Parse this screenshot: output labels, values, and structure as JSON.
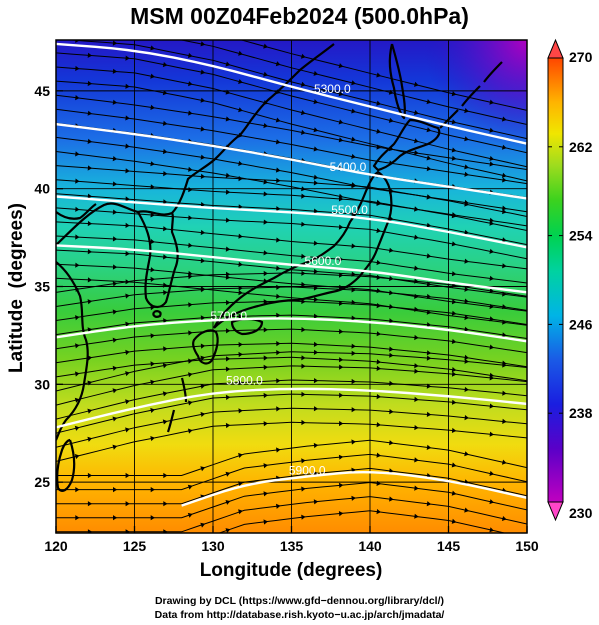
{
  "title": "MSM 00Z04Feb2024 (500.0hPa)",
  "credits": {
    "line1": "Drawing by DCL (https://www.gfd−dennou.org/library/dcl/)",
    "line2": "Data from http://database.rish.kyoto−u.ac.jp/arch/jmadata/"
  },
  "map": {
    "x_axis": {
      "label": "Longitude (degrees)",
      "range": [
        120,
        150
      ],
      "ticks": [
        120,
        125,
        130,
        135,
        140,
        145,
        150
      ]
    },
    "y_axis": {
      "label": "Latitude  (degrees)",
      "range": [
        22.4,
        47.6
      ],
      "ticks": [
        25,
        30,
        35,
        40,
        45
      ]
    },
    "gridlines": true,
    "colorbar": {
      "min": 230,
      "max": 270,
      "tick_labels": [
        230,
        238,
        246,
        254,
        262,
        270
      ],
      "colors": [
        "#c000c0",
        "#2a00c8",
        "#1d4fe6",
        "#00c8e6",
        "#00d278",
        "#46d21e",
        "#c8e61e",
        "#ffd200",
        "#ff9600",
        "#ff4600"
      ]
    },
    "contours": [
      {
        "label": "5300.0",
        "label_pos": [
          137.6,
          44.9
        ],
        "points": [
          [
            120,
            47.4
          ],
          [
            125,
            47.1
          ],
          [
            130,
            46.3
          ],
          [
            135,
            45.2
          ],
          [
            140,
            44.2
          ],
          [
            145,
            43.2
          ],
          [
            150,
            42.3
          ]
        ]
      },
      {
        "label": "5400.0",
        "label_pos": [
          138.6,
          40.9
        ],
        "points": [
          [
            120,
            43.3
          ],
          [
            125,
            42.8
          ],
          [
            130,
            42.2
          ],
          [
            135,
            41.5
          ],
          [
            140,
            40.7
          ],
          [
            145,
            40.1
          ],
          [
            150,
            39.5
          ]
        ]
      },
      {
        "label": "5500.0",
        "label_pos": [
          138.7,
          38.7
        ],
        "points": [
          [
            120,
            39.6
          ],
          [
            125,
            39.3
          ],
          [
            130,
            39.0
          ],
          [
            135,
            38.8
          ],
          [
            140,
            38.5
          ],
          [
            145,
            37.8
          ],
          [
            150,
            37.0
          ]
        ]
      },
      {
        "label": "5600.0",
        "label_pos": [
          137.0,
          36.1
        ],
        "points": [
          [
            120,
            37.1
          ],
          [
            125,
            36.9
          ],
          [
            130,
            36.5
          ],
          [
            135,
            36.1
          ],
          [
            140,
            35.8
          ],
          [
            145,
            35.2
          ],
          [
            150,
            34.7
          ]
        ]
      },
      {
        "label": "5700.0",
        "label_pos": [
          131.0,
          33.3
        ],
        "points": [
          [
            120,
            32.4
          ],
          [
            125,
            33.0
          ],
          [
            130,
            33.3
          ],
          [
            135,
            33.4
          ],
          [
            140,
            33.2
          ],
          [
            145,
            32.8
          ],
          [
            150,
            32.2
          ]
        ]
      },
      {
        "label": "5800.0",
        "label_pos": [
          132.0,
          30.0
        ],
        "points": [
          [
            120,
            27.8
          ],
          [
            125,
            28.8
          ],
          [
            130,
            29.6
          ],
          [
            135,
            29.8
          ],
          [
            140,
            29.7
          ],
          [
            145,
            29.4
          ],
          [
            150,
            29.0
          ]
        ]
      },
      {
        "label": "5900.0",
        "label_pos": [
          136.0,
          25.4
        ],
        "points": [
          [
            128,
            23.8
          ],
          [
            132,
            24.9
          ],
          [
            136,
            25.3
          ],
          [
            140,
            25.6
          ],
          [
            145,
            25.1
          ],
          [
            150,
            24.2
          ]
        ]
      }
    ]
  }
}
